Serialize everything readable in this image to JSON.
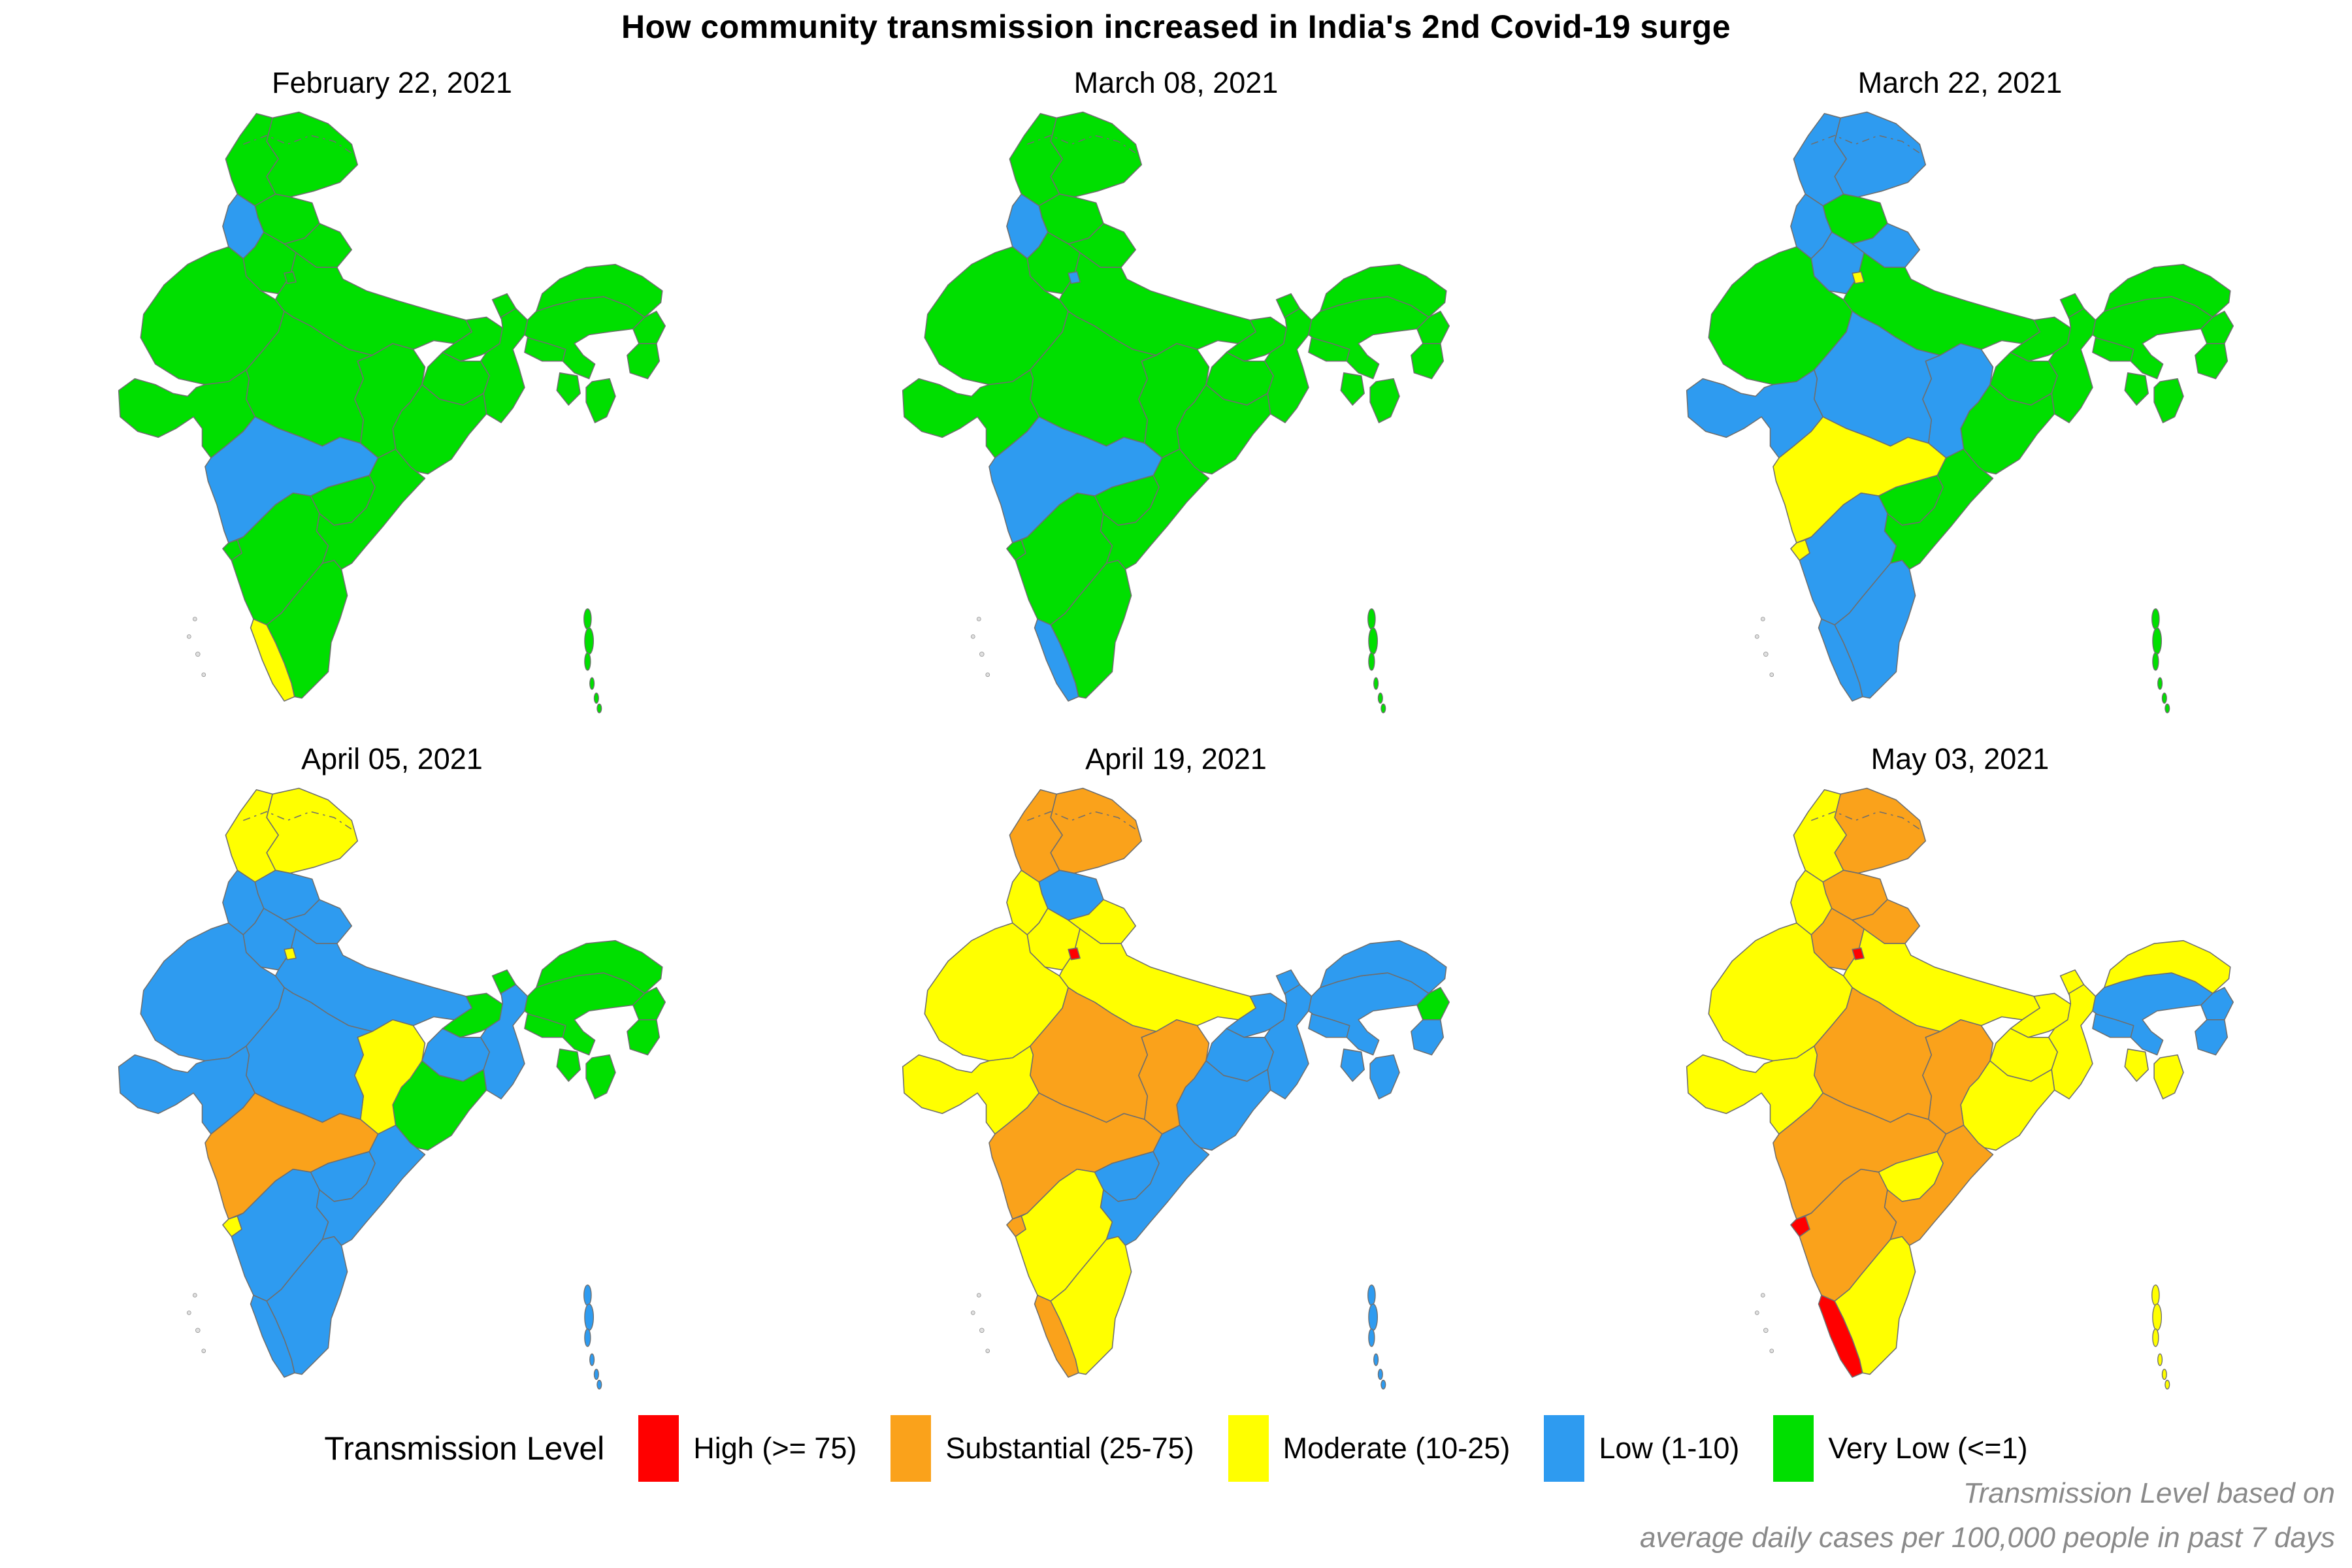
{
  "chart_data": {
    "type": "heatmap",
    "subtype": "choropleth-small-multiples",
    "title": "How community transmission increased in India's 2nd Covid-19 surge",
    "legend_title": "Transmission Level",
    "legend_position": "bottom",
    "layout_hint": {
      "rows": 2,
      "cols": 3,
      "background": "#ffffff",
      "border_color": "#6e6e6e"
    },
    "levels": [
      {
        "id": "high",
        "label": "High (>= 75)",
        "color": "#FF0000"
      },
      {
        "id": "substantial",
        "label": "Substantial (25-75)",
        "color": "#FAA21B"
      },
      {
        "id": "moderate",
        "label": "Moderate (10-25)",
        "color": "#FFFF00"
      },
      {
        "id": "low",
        "label": "Low (1-10)",
        "color": "#2E9BF0"
      },
      {
        "id": "very_low",
        "label": "Very Low (<=1)",
        "color": "#00DF00"
      }
    ],
    "footnote_line1": "Transmission Level based on",
    "footnote_line2": "average daily cases per 100,000 people in past 7 days",
    "panels": [
      {
        "date": "February 22, 2021",
        "states": {
          "jammu_kashmir": "very_low",
          "ladakh": "very_low",
          "himachal_pradesh": "very_low",
          "punjab": "low",
          "uttarakhand": "very_low",
          "haryana": "very_low",
          "delhi": "very_low",
          "rajasthan": "very_low",
          "uttar_pradesh": "very_low",
          "bihar": "very_low",
          "sikkim": "very_low",
          "west_bengal": "very_low",
          "jharkhand": "very_low",
          "odisha": "very_low",
          "chhattisgarh": "very_low",
          "madhya_pradesh": "very_low",
          "gujarat": "very_low",
          "maharashtra": "low",
          "goa": "very_low",
          "telangana": "very_low",
          "andhra_pradesh": "very_low",
          "karnataka": "very_low",
          "kerala": "moderate",
          "tamil_nadu": "very_low",
          "assam": "very_low",
          "arunachal_pradesh": "very_low",
          "nagaland": "very_low",
          "manipur": "very_low",
          "mizoram": "very_low",
          "tripura": "very_low",
          "meghalaya": "very_low",
          "andaman_nicobar": "very_low"
        }
      },
      {
        "date": "March 08, 2021",
        "states": {
          "jammu_kashmir": "very_low",
          "ladakh": "very_low",
          "himachal_pradesh": "very_low",
          "punjab": "low",
          "uttarakhand": "very_low",
          "haryana": "very_low",
          "delhi": "low",
          "rajasthan": "very_low",
          "uttar_pradesh": "very_low",
          "bihar": "very_low",
          "sikkim": "very_low",
          "west_bengal": "very_low",
          "jharkhand": "very_low",
          "odisha": "very_low",
          "chhattisgarh": "very_low",
          "madhya_pradesh": "very_low",
          "gujarat": "very_low",
          "maharashtra": "low",
          "goa": "very_low",
          "telangana": "very_low",
          "andhra_pradesh": "very_low",
          "karnataka": "very_low",
          "kerala": "low",
          "tamil_nadu": "very_low",
          "assam": "very_low",
          "arunachal_pradesh": "very_low",
          "nagaland": "very_low",
          "manipur": "very_low",
          "mizoram": "very_low",
          "tripura": "very_low",
          "meghalaya": "very_low",
          "andaman_nicobar": "very_low"
        }
      },
      {
        "date": "March 22, 2021",
        "states": {
          "jammu_kashmir": "low",
          "ladakh": "low",
          "himachal_pradesh": "very_low",
          "punjab": "low",
          "uttarakhand": "low",
          "haryana": "low",
          "delhi": "moderate",
          "rajasthan": "very_low",
          "uttar_pradesh": "very_low",
          "bihar": "very_low",
          "sikkim": "very_low",
          "west_bengal": "very_low",
          "jharkhand": "very_low",
          "odisha": "very_low",
          "chhattisgarh": "low",
          "madhya_pradesh": "low",
          "gujarat": "low",
          "maharashtra": "moderate",
          "goa": "moderate",
          "telangana": "very_low",
          "andhra_pradesh": "very_low",
          "karnataka": "low",
          "kerala": "low",
          "tamil_nadu": "low",
          "assam": "very_low",
          "arunachal_pradesh": "very_low",
          "nagaland": "very_low",
          "manipur": "very_low",
          "mizoram": "very_low",
          "tripura": "very_low",
          "meghalaya": "very_low",
          "andaman_nicobar": "very_low"
        }
      },
      {
        "date": "April 05, 2021",
        "states": {
          "jammu_kashmir": "moderate",
          "ladakh": "moderate",
          "himachal_pradesh": "low",
          "punjab": "low",
          "uttarakhand": "low",
          "haryana": "low",
          "delhi": "moderate",
          "rajasthan": "low",
          "uttar_pradesh": "low",
          "bihar": "very_low",
          "sikkim": "very_low",
          "west_bengal": "low",
          "jharkhand": "low",
          "odisha": "very_low",
          "chhattisgarh": "moderate",
          "madhya_pradesh": "low",
          "gujarat": "low",
          "maharashtra": "substantial",
          "goa": "moderate",
          "telangana": "low",
          "andhra_pradesh": "low",
          "karnataka": "low",
          "kerala": "low",
          "tamil_nadu": "low",
          "assam": "very_low",
          "arunachal_pradesh": "very_low",
          "nagaland": "very_low",
          "manipur": "very_low",
          "mizoram": "very_low",
          "tripura": "very_low",
          "meghalaya": "very_low",
          "andaman_nicobar": "low"
        }
      },
      {
        "date": "April 19, 2021",
        "states": {
          "jammu_kashmir": "substantial",
          "ladakh": "substantial",
          "himachal_pradesh": "low",
          "punjab": "moderate",
          "uttarakhand": "moderate",
          "haryana": "moderate",
          "delhi": "high",
          "rajasthan": "moderate",
          "uttar_pradesh": "moderate",
          "bihar": "low",
          "sikkim": "low",
          "west_bengal": "low",
          "jharkhand": "low",
          "odisha": "low",
          "chhattisgarh": "substantial",
          "madhya_pradesh": "substantial",
          "gujarat": "moderate",
          "maharashtra": "substantial",
          "goa": "substantial",
          "telangana": "low",
          "andhra_pradesh": "low",
          "karnataka": "moderate",
          "kerala": "substantial",
          "tamil_nadu": "moderate",
          "assam": "low",
          "arunachal_pradesh": "low",
          "nagaland": "very_low",
          "manipur": "low",
          "mizoram": "low",
          "tripura": "low",
          "meghalaya": "low",
          "andaman_nicobar": "low"
        }
      },
      {
        "date": "May 03, 2021",
        "states": {
          "jammu_kashmir": "moderate",
          "ladakh": "substantial",
          "himachal_pradesh": "substantial",
          "punjab": "moderate",
          "uttarakhand": "substantial",
          "haryana": "substantial",
          "delhi": "high",
          "rajasthan": "moderate",
          "uttar_pradesh": "moderate",
          "bihar": "moderate",
          "sikkim": "moderate",
          "west_bengal": "moderate",
          "jharkhand": "moderate",
          "odisha": "moderate",
          "chhattisgarh": "substantial",
          "madhya_pradesh": "substantial",
          "gujarat": "moderate",
          "maharashtra": "substantial",
          "goa": "high",
          "telangana": "moderate",
          "andhra_pradesh": "substantial",
          "karnataka": "substantial",
          "kerala": "high",
          "tamil_nadu": "moderate",
          "assam": "low",
          "arunachal_pradesh": "moderate",
          "nagaland": "low",
          "manipur": "low",
          "mizoram": "moderate",
          "tripura": "moderate",
          "meghalaya": "low",
          "andaman_nicobar": "moderate"
        }
      }
    ]
  }
}
